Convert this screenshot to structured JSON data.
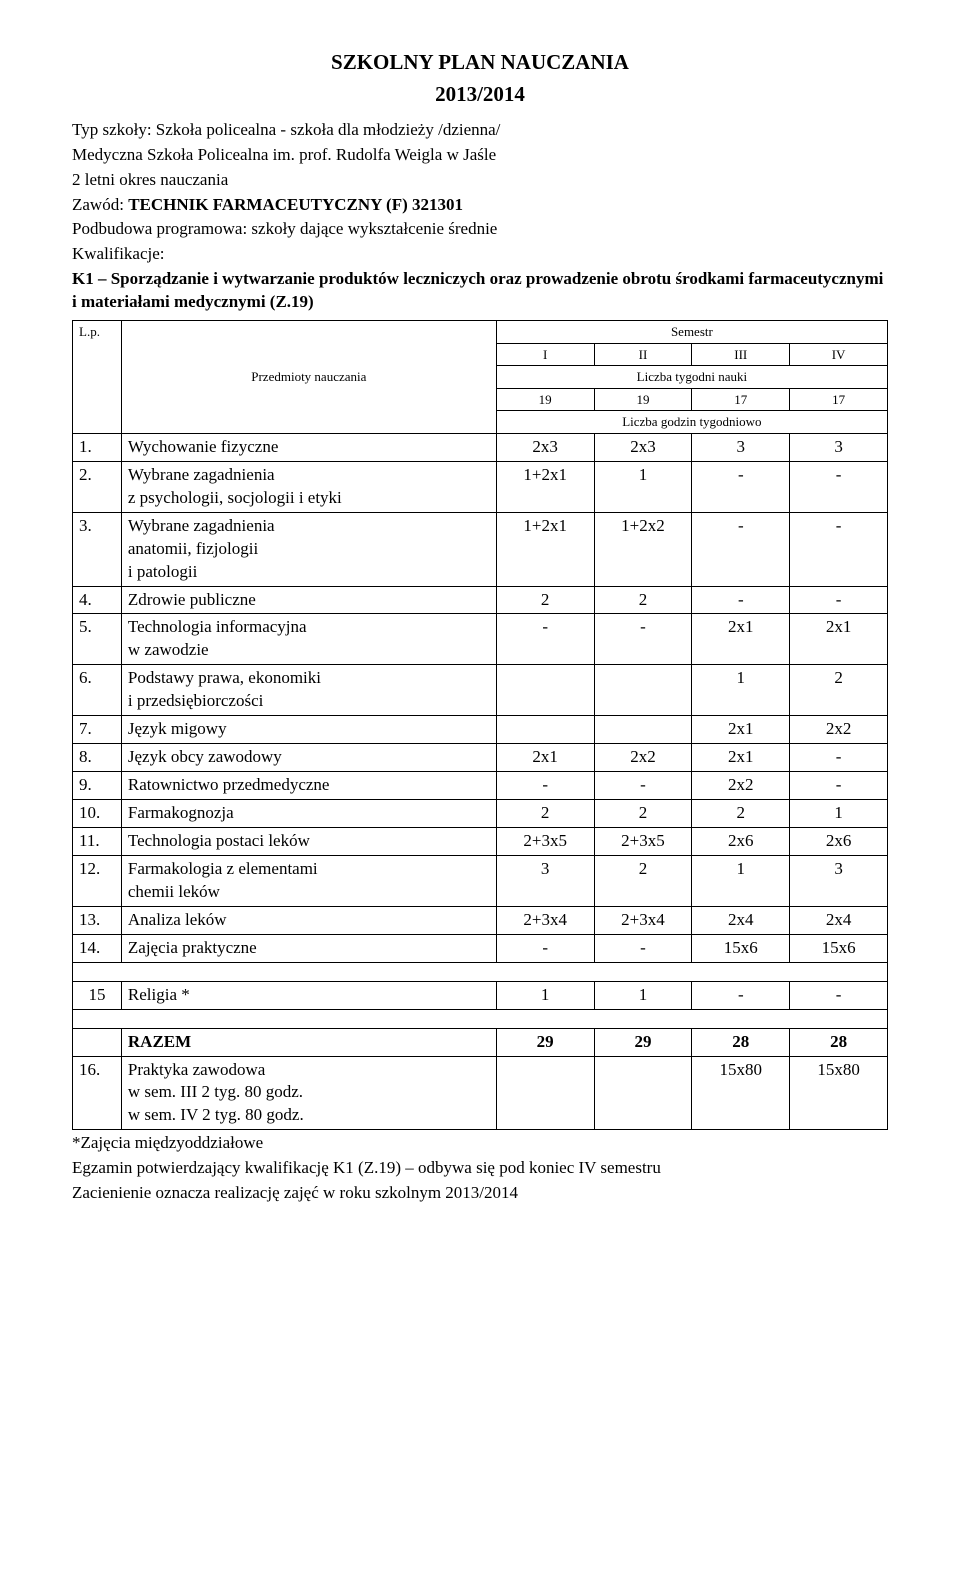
{
  "title": "SZKOLNY PLAN  NAUCZANIA",
  "year": "2013/2014",
  "meta": {
    "l1": "Typ szkoły: Szkoła policealna - szkoła dla młodzieży /dzienna/",
    "l2": "Medyczna Szkoła Policealna im. prof. Rudolfa Weigla w Jaśle",
    "l3": "2 letni okres nauczania",
    "l4a": "Zawód: ",
    "l4b": "TECHNIK FARMACEUTYCZNY  (F)  321301",
    "l5": "Podbudowa programowa: szkoły dające wykształcenie średnie",
    "l6": "Kwalifikacje:",
    "l7": "K1 – Sporządzanie i wytwarzanie produktów leczniczych oraz prowadzenie obrotu środkami farmaceutycznymi i materiałami medycznymi (Z.19)"
  },
  "head": {
    "lp": "L.p.",
    "subjects": "Przedmioty nauczania",
    "sem": "Semestr",
    "s1": "I",
    "s2": "II",
    "s3": "III",
    "s4": "IV",
    "weeks_label": "Liczba tygodni nauki",
    "w1": "19",
    "w2": "19",
    "w3": "17",
    "w4": "17",
    "hours_label": "Liczba godzin tygodniowo"
  },
  "rows": [
    {
      "n": "1.",
      "name": "Wychowanie fizyczne",
      "c": [
        "2x3",
        "2x3",
        "3",
        "3"
      ]
    },
    {
      "n": "2.",
      "name": "Wybrane  zagadnienia\nz psychologii, socjologii i etyki",
      "c": [
        "1+2x1",
        "1",
        "-",
        "-"
      ]
    },
    {
      "n": "3.",
      "name": "Wybrane  zagadnienia\n anatomii, fizjologii\ni patologii",
      "c": [
        "1+2x1",
        "1+2x2",
        "-",
        "-"
      ]
    },
    {
      "n": "4.",
      "name": "Zdrowie publiczne",
      "c": [
        "2",
        "2",
        "-",
        "-"
      ]
    },
    {
      "n": "5.",
      "name": "Technologia informacyjna\nw zawodzie",
      "c": [
        "-",
        "-",
        "2x1",
        "2x1"
      ]
    },
    {
      "n": "6.",
      "name": "Podstawy prawa, ekonomiki\ni przedsiębiorczości",
      "c": [
        "",
        "",
        "1",
        "2"
      ]
    },
    {
      "n": "7.",
      "name": "Język migowy",
      "c": [
        "",
        "",
        "2x1",
        "2x2"
      ]
    },
    {
      "n": "8.",
      "name": "Język obcy zawodowy",
      "c": [
        "2x1",
        "2x2",
        "2x1",
        "-"
      ]
    },
    {
      "n": "9.",
      "name": "Ratownictwo przedmedyczne",
      "c": [
        "-",
        "-",
        "2x2",
        "-"
      ]
    },
    {
      "n": "10.",
      "name": "Farmakognozja",
      "c": [
        "2",
        "2",
        "2",
        "1"
      ]
    },
    {
      "n": "11.",
      "name": "Technologia postaci leków",
      "c": [
        "2+3x5",
        "2+3x5",
        "2x6",
        "2x6"
      ]
    },
    {
      "n": "12.",
      "name": "Farmakologia z elementami\nchemii leków",
      "c": [
        "3",
        "2",
        "1",
        "3"
      ]
    },
    {
      "n": "13.",
      "name": "Analiza leków",
      "c": [
        "2+3x4",
        "2+3x4",
        "2x4",
        "2x4"
      ]
    },
    {
      "n": "14.",
      "name": "Zajęcia praktyczne",
      "c": [
        "-",
        "-",
        "15x6",
        "15x6"
      ]
    }
  ],
  "religia": {
    "n": "15",
    "name": "Religia *",
    "c": [
      "1",
      "1",
      "-",
      "-"
    ]
  },
  "razem": {
    "name": "RAZEM",
    "c": [
      "29",
      "29",
      "28",
      "28"
    ]
  },
  "praktyka": {
    "n": "16.",
    "name": "Praktyka zawodowa\nw sem. III 2 tyg. 80 godz.\nw sem. IV 2 tyg. 80 godz.",
    "c": [
      "",
      "",
      "15x80",
      "15x80"
    ]
  },
  "footer": {
    "f1": "*Zajęcia międzyoddziałowe",
    "f2": "Egzamin potwierdzający kwalifikację K1 (Z.19) – odbywa się pod koniec IV semestru",
    "f3": "Zacienienie oznacza realizację zajęć w roku szkolnym 2013/2014"
  }
}
